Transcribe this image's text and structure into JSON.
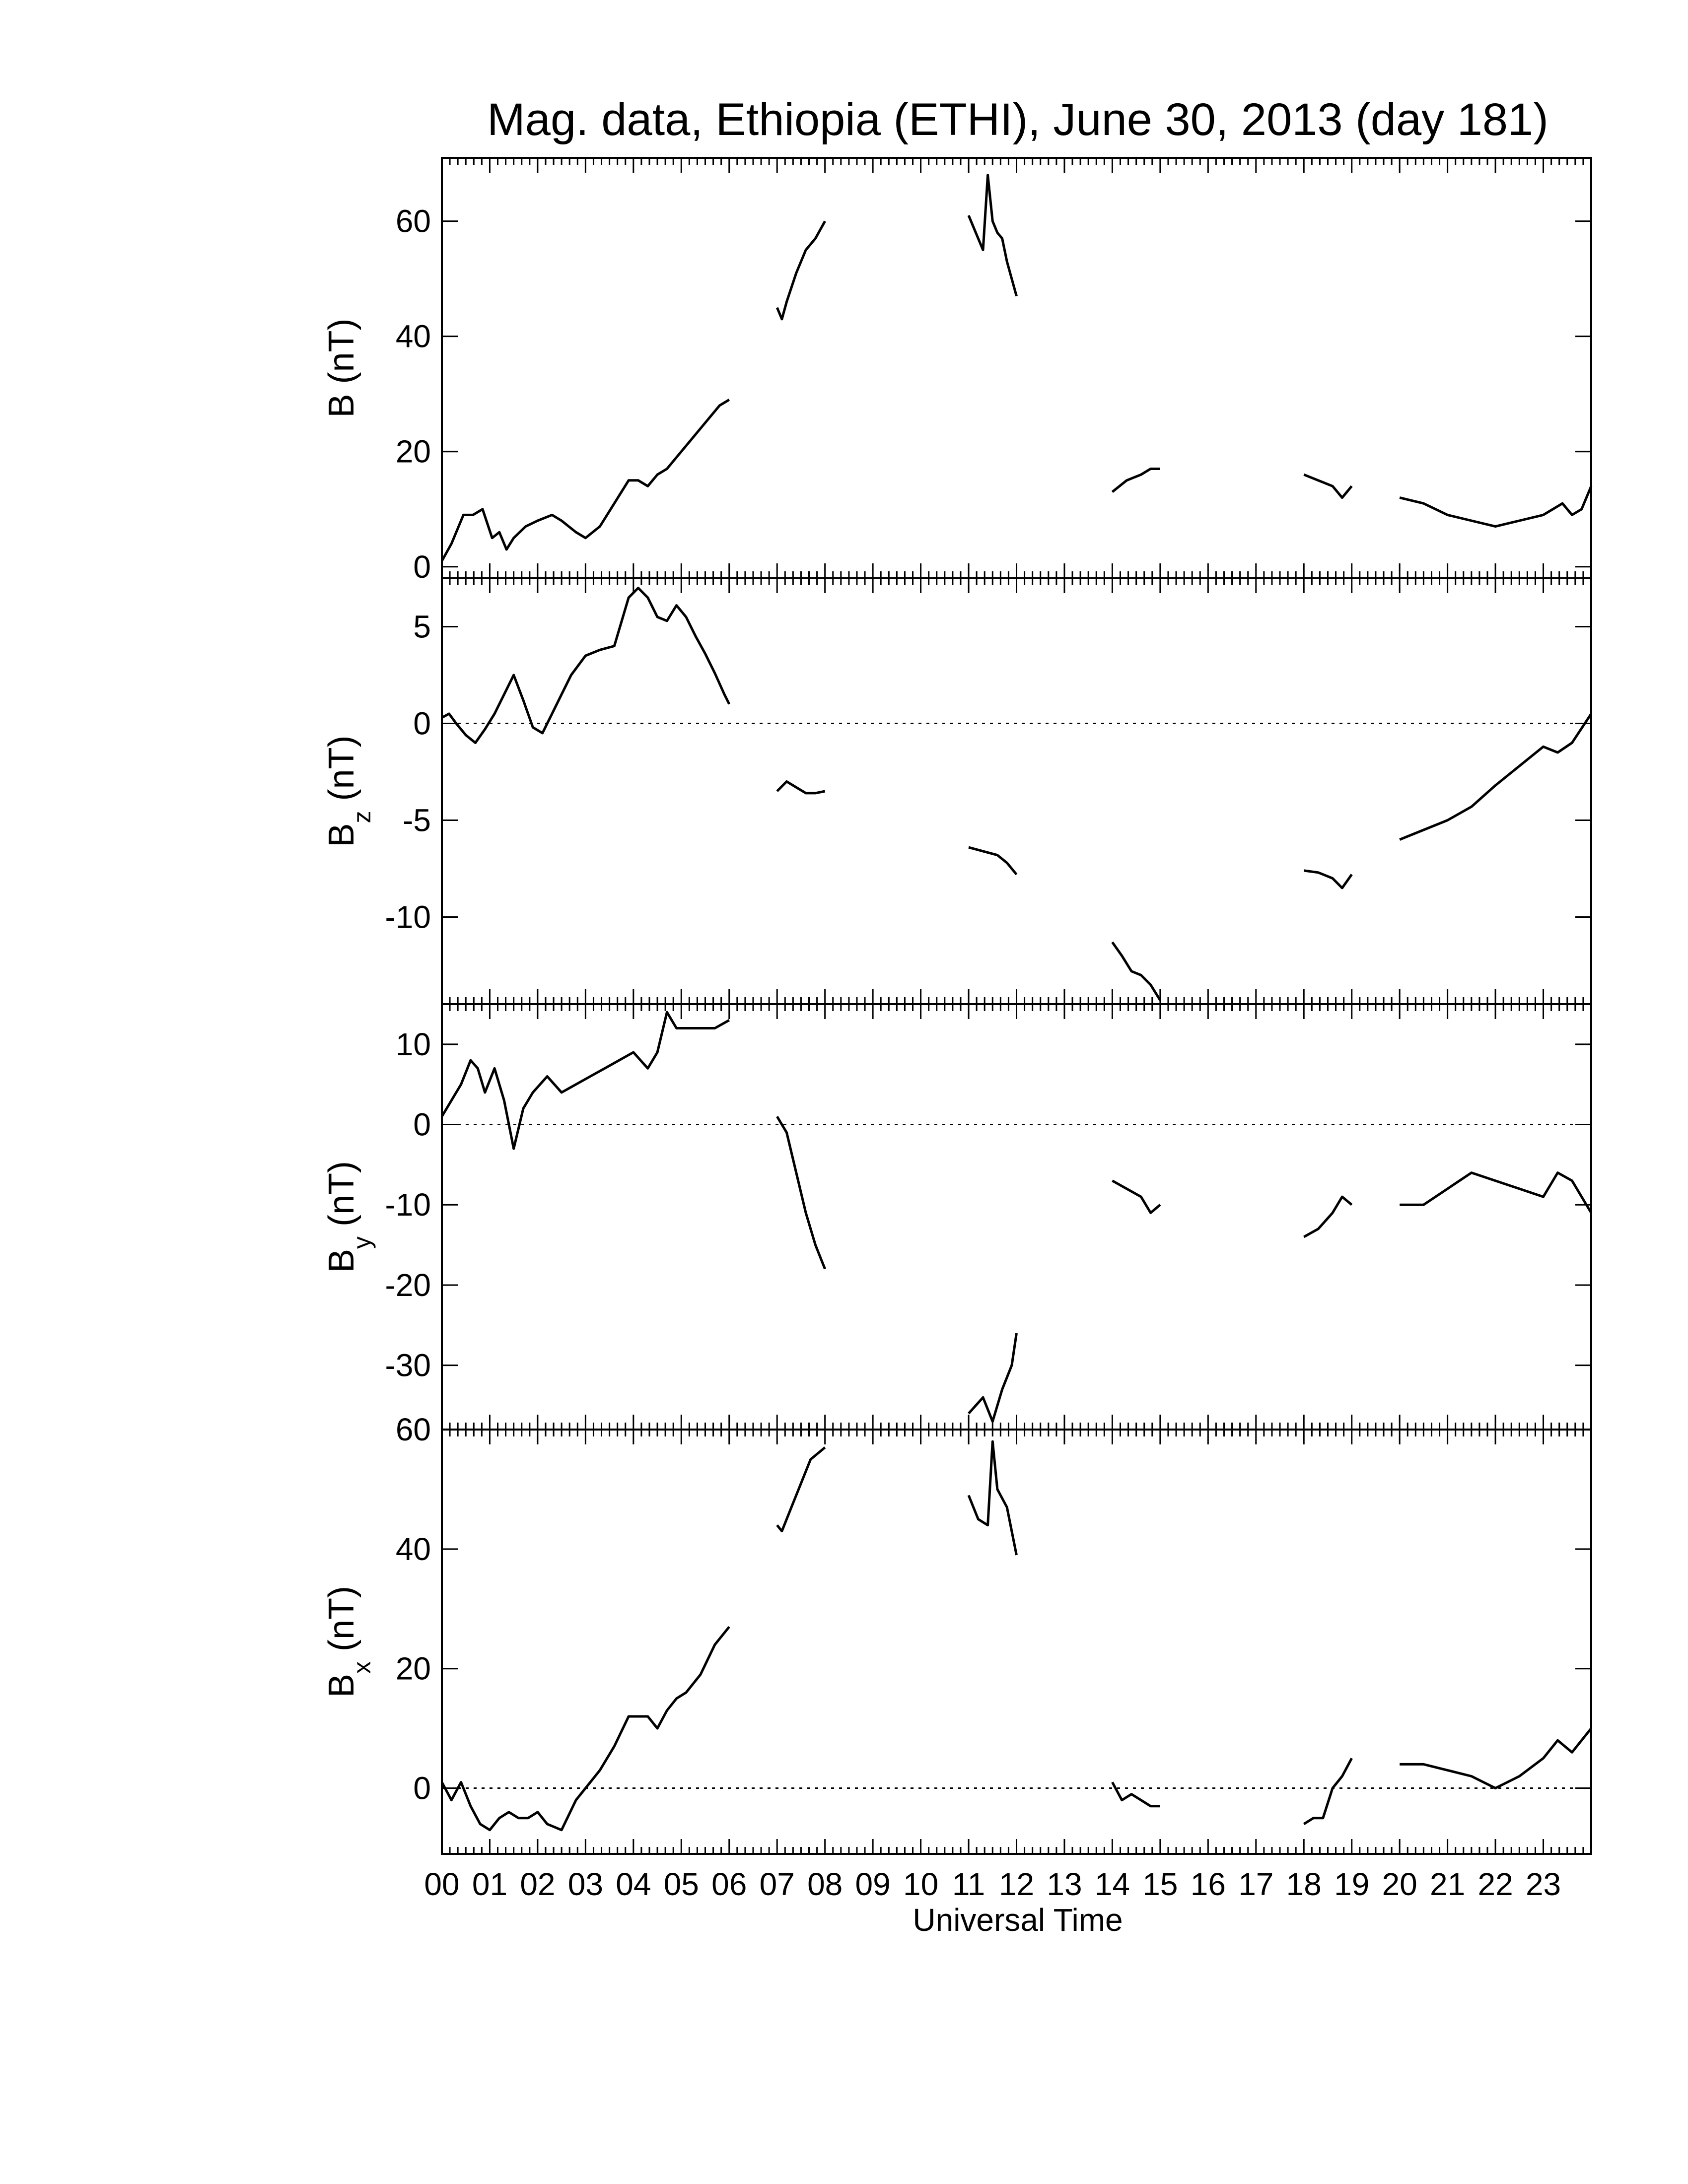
{
  "chart_data": {
    "type": "line",
    "title": "Mag. data, Ethiopia (ETHI), June 30, 2013 (day 181)",
    "xlabel": "Universal Time",
    "xlim": [
      0,
      24
    ],
    "x_tick_labels": [
      "00",
      "01",
      "02",
      "03",
      "04",
      "05",
      "06",
      "07",
      "08",
      "09",
      "10",
      "11",
      "12",
      "13",
      "14",
      "15",
      "16",
      "17",
      "18",
      "19",
      "20",
      "21",
      "22",
      "23"
    ],
    "grid": false,
    "panels": [
      {
        "id": "B",
        "ylabel": {
          "main": "B",
          "sub": "",
          "unit": " (nT)"
        },
        "ylim": [
          -2,
          71
        ],
        "yticks": [
          0,
          20,
          40,
          60
        ],
        "zero_line": false,
        "segments": [
          {
            "x": [
              0.0,
              0.2,
              0.45,
              0.65,
              0.85,
              1.05,
              1.2,
              1.35,
              1.5,
              1.75,
              2.0,
              2.3,
              2.5,
              2.8,
              3.0,
              3.3,
              3.6,
              3.9,
              4.1,
              4.3,
              4.5,
              4.7,
              4.9,
              5.2,
              5.5,
              5.8,
              6.0
            ],
            "y": [
              1,
              4,
              9,
              9,
              10,
              5,
              6,
              3,
              5,
              7,
              8,
              9,
              8,
              6,
              5,
              7,
              11,
              15,
              15,
              14,
              16,
              17,
              19,
              22,
              25,
              28,
              29
            ]
          },
          {
            "x": [
              7.0,
              7.1,
              7.2,
              7.4,
              7.6,
              7.8,
              8.0
            ],
            "y": [
              45,
              43,
              46,
              51,
              55,
              57,
              60
            ]
          },
          {
            "x": [
              11.0,
              11.2,
              11.3,
              11.4,
              11.5,
              11.6,
              11.7,
              11.8,
              12.0
            ],
            "y": [
              61,
              57,
              55,
              68,
              60,
              58,
              57,
              53,
              47
            ]
          },
          {
            "x": [
              14.0,
              14.3,
              14.6,
              14.8,
              15.0
            ],
            "y": [
              13,
              15,
              16,
              17,
              17
            ]
          },
          {
            "x": [
              18.0,
              18.3,
              18.6,
              18.8,
              19.0
            ],
            "y": [
              16,
              15,
              14,
              12,
              14
            ]
          },
          {
            "x": [
              20.0,
              20.5,
              21.0,
              21.5,
              22.0,
              22.5,
              23.0,
              23.2,
              23.4,
              23.6,
              23.8,
              24.0
            ],
            "y": [
              12,
              11,
              9,
              8,
              7,
              8,
              9,
              10,
              11,
              9,
              10,
              14
            ]
          }
        ]
      },
      {
        "id": "Bz",
        "ylabel": {
          "main": "B",
          "sub": "z",
          "unit": " (nT)"
        },
        "ylim": [
          -14.5,
          7.5
        ],
        "yticks": [
          5,
          0,
          -5,
          -10
        ],
        "zero_line": true,
        "segments": [
          {
            "x": [
              0.0,
              0.15,
              0.3,
              0.5,
              0.7,
              0.9,
              1.1,
              1.3,
              1.5,
              1.7,
              1.9,
              2.1,
              2.3,
              2.5,
              2.7,
              3.0,
              3.3,
              3.6,
              3.9,
              4.1,
              4.3,
              4.5,
              4.7,
              4.9,
              5.1,
              5.3,
              5.5,
              5.7,
              5.9,
              6.0
            ],
            "y": [
              0.3,
              0.5,
              0,
              -0.6,
              -1.0,
              -0.3,
              0.5,
              1.5,
              2.5,
              1.2,
              -0.2,
              -0.5,
              0.5,
              1.5,
              2.5,
              3.5,
              3.8,
              4.0,
              6.5,
              7.0,
              6.5,
              5.5,
              5.3,
              6.1,
              5.5,
              4.5,
              3.6,
              2.6,
              1.5,
              1.0
            ]
          },
          {
            "x": [
              7.0,
              7.2,
              7.4,
              7.6,
              7.8,
              8.0
            ],
            "y": [
              -3.5,
              -3.0,
              -3.3,
              -3.6,
              -3.6,
              -3.5
            ]
          },
          {
            "x": [
              11.0,
              11.3,
              11.6,
              11.8,
              12.0
            ],
            "y": [
              -6.4,
              -6.6,
              -6.8,
              -7.2,
              -7.8
            ]
          },
          {
            "x": [
              14.0,
              14.2,
              14.4,
              14.6,
              14.8,
              15.0
            ],
            "y": [
              -11.3,
              -12.0,
              -12.8,
              -13.0,
              -13.5,
              -14.3
            ]
          },
          {
            "x": [
              18.0,
              18.3,
              18.6,
              18.8,
              19.0
            ],
            "y": [
              -7.6,
              -7.7,
              -8.0,
              -8.5,
              -7.8
            ]
          },
          {
            "x": [
              20.0,
              20.5,
              21.0,
              21.5,
              22.0,
              22.5,
              23.0,
              23.3,
              23.6,
              24.0
            ],
            "y": [
              -6.0,
              -5.5,
              -5.0,
              -4.3,
              -3.2,
              -2.2,
              -1.2,
              -1.5,
              -1.0,
              0.5
            ]
          }
        ]
      },
      {
        "id": "By",
        "ylabel": {
          "main": "B",
          "sub": "y",
          "unit": " (nT)"
        },
        "ylim": [
          -38,
          15
        ],
        "yticks": [
          10,
          0,
          -10,
          -20,
          -30
        ],
        "zero_line": true,
        "segments": [
          {
            "x": [
              0.0,
              0.2,
              0.4,
              0.6,
              0.75,
              0.9,
              1.1,
              1.3,
              1.5,
              1.7,
              1.9,
              2.2,
              2.5,
              2.8,
              3.1,
              3.4,
              3.7,
              4.0,
              4.3,
              4.5,
              4.7,
              4.9,
              5.1,
              5.4,
              5.7,
              6.0
            ],
            "y": [
              1,
              3,
              5,
              8,
              7,
              4,
              7,
              3,
              -3,
              2,
              4,
              6,
              4,
              5,
              6,
              7,
              8,
              9,
              7,
              9,
              14,
              12,
              12,
              12,
              12,
              13
            ]
          },
          {
            "x": [
              7.0,
              7.2,
              7.4,
              7.6,
              7.8,
              8.0
            ],
            "y": [
              1,
              -1,
              -6,
              -11,
              -15,
              -18
            ]
          },
          {
            "x": [
              11.0,
              11.3,
              11.5,
              11.7,
              11.9,
              12.0
            ],
            "y": [
              -36,
              -34,
              -37,
              -33,
              -30,
              -26
            ]
          },
          {
            "x": [
              14.0,
              14.3,
              14.6,
              14.8,
              15.0
            ],
            "y": [
              -7,
              -8,
              -9,
              -11,
              -10
            ]
          },
          {
            "x": [
              18.0,
              18.3,
              18.6,
              18.8,
              19.0
            ],
            "y": [
              -14,
              -13,
              -11,
              -9,
              -10
            ]
          },
          {
            "x": [
              20.0,
              20.5,
              21.0,
              21.5,
              22.0,
              22.5,
              23.0,
              23.3,
              23.6,
              24.0
            ],
            "y": [
              -10,
              -10,
              -8,
              -6,
              -7,
              -8,
              -9,
              -6,
              -7,
              -11
            ]
          }
        ]
      },
      {
        "id": "Bx",
        "ylabel": {
          "main": "B",
          "sub": "x",
          "unit": " (nT)"
        },
        "ylim": [
          -11,
          60
        ],
        "yticks": [
          60,
          40,
          20,
          0
        ],
        "zero_line": true,
        "segments": [
          {
            "x": [
              0.0,
              0.2,
              0.4,
              0.6,
              0.8,
              1.0,
              1.2,
              1.4,
              1.6,
              1.8,
              2.0,
              2.2,
              2.5,
              2.8,
              3.0,
              3.3,
              3.6,
              3.9,
              4.1,
              4.3,
              4.5,
              4.7,
              4.9,
              5.1,
              5.4,
              5.7,
              6.0
            ],
            "y": [
              1,
              -2,
              1,
              -3,
              -6,
              -7,
              -5,
              -4,
              -5,
              -5,
              -4,
              -6,
              -7,
              -2,
              0,
              3,
              7,
              12,
              12,
              12,
              10,
              13,
              15,
              16,
              19,
              24,
              27
            ]
          },
          {
            "x": [
              7.0,
              7.1,
              7.3,
              7.5,
              7.7,
              8.0
            ],
            "y": [
              44,
              43,
              47,
              51,
              55,
              57
            ]
          },
          {
            "x": [
              11.0,
              11.2,
              11.4,
              11.5,
              11.6,
              11.8,
              12.0
            ],
            "y": [
              49,
              45,
              44,
              58,
              50,
              47,
              39
            ]
          },
          {
            "x": [
              14.0,
              14.2,
              14.4,
              14.6,
              14.8,
              15.0
            ],
            "y": [
              1,
              -2,
              -1,
              -2,
              -3,
              -3
            ]
          },
          {
            "x": [
              18.0,
              18.2,
              18.4,
              18.6,
              18.8,
              19.0
            ],
            "y": [
              -6,
              -5,
              -5,
              0,
              2,
              5
            ]
          },
          {
            "x": [
              20.0,
              20.5,
              21.0,
              21.5,
              22.0,
              22.5,
              23.0,
              23.3,
              23.6,
              24.0
            ],
            "y": [
              4,
              4,
              3,
              2,
              0,
              2,
              5,
              8,
              6,
              10
            ]
          }
        ]
      }
    ]
  }
}
